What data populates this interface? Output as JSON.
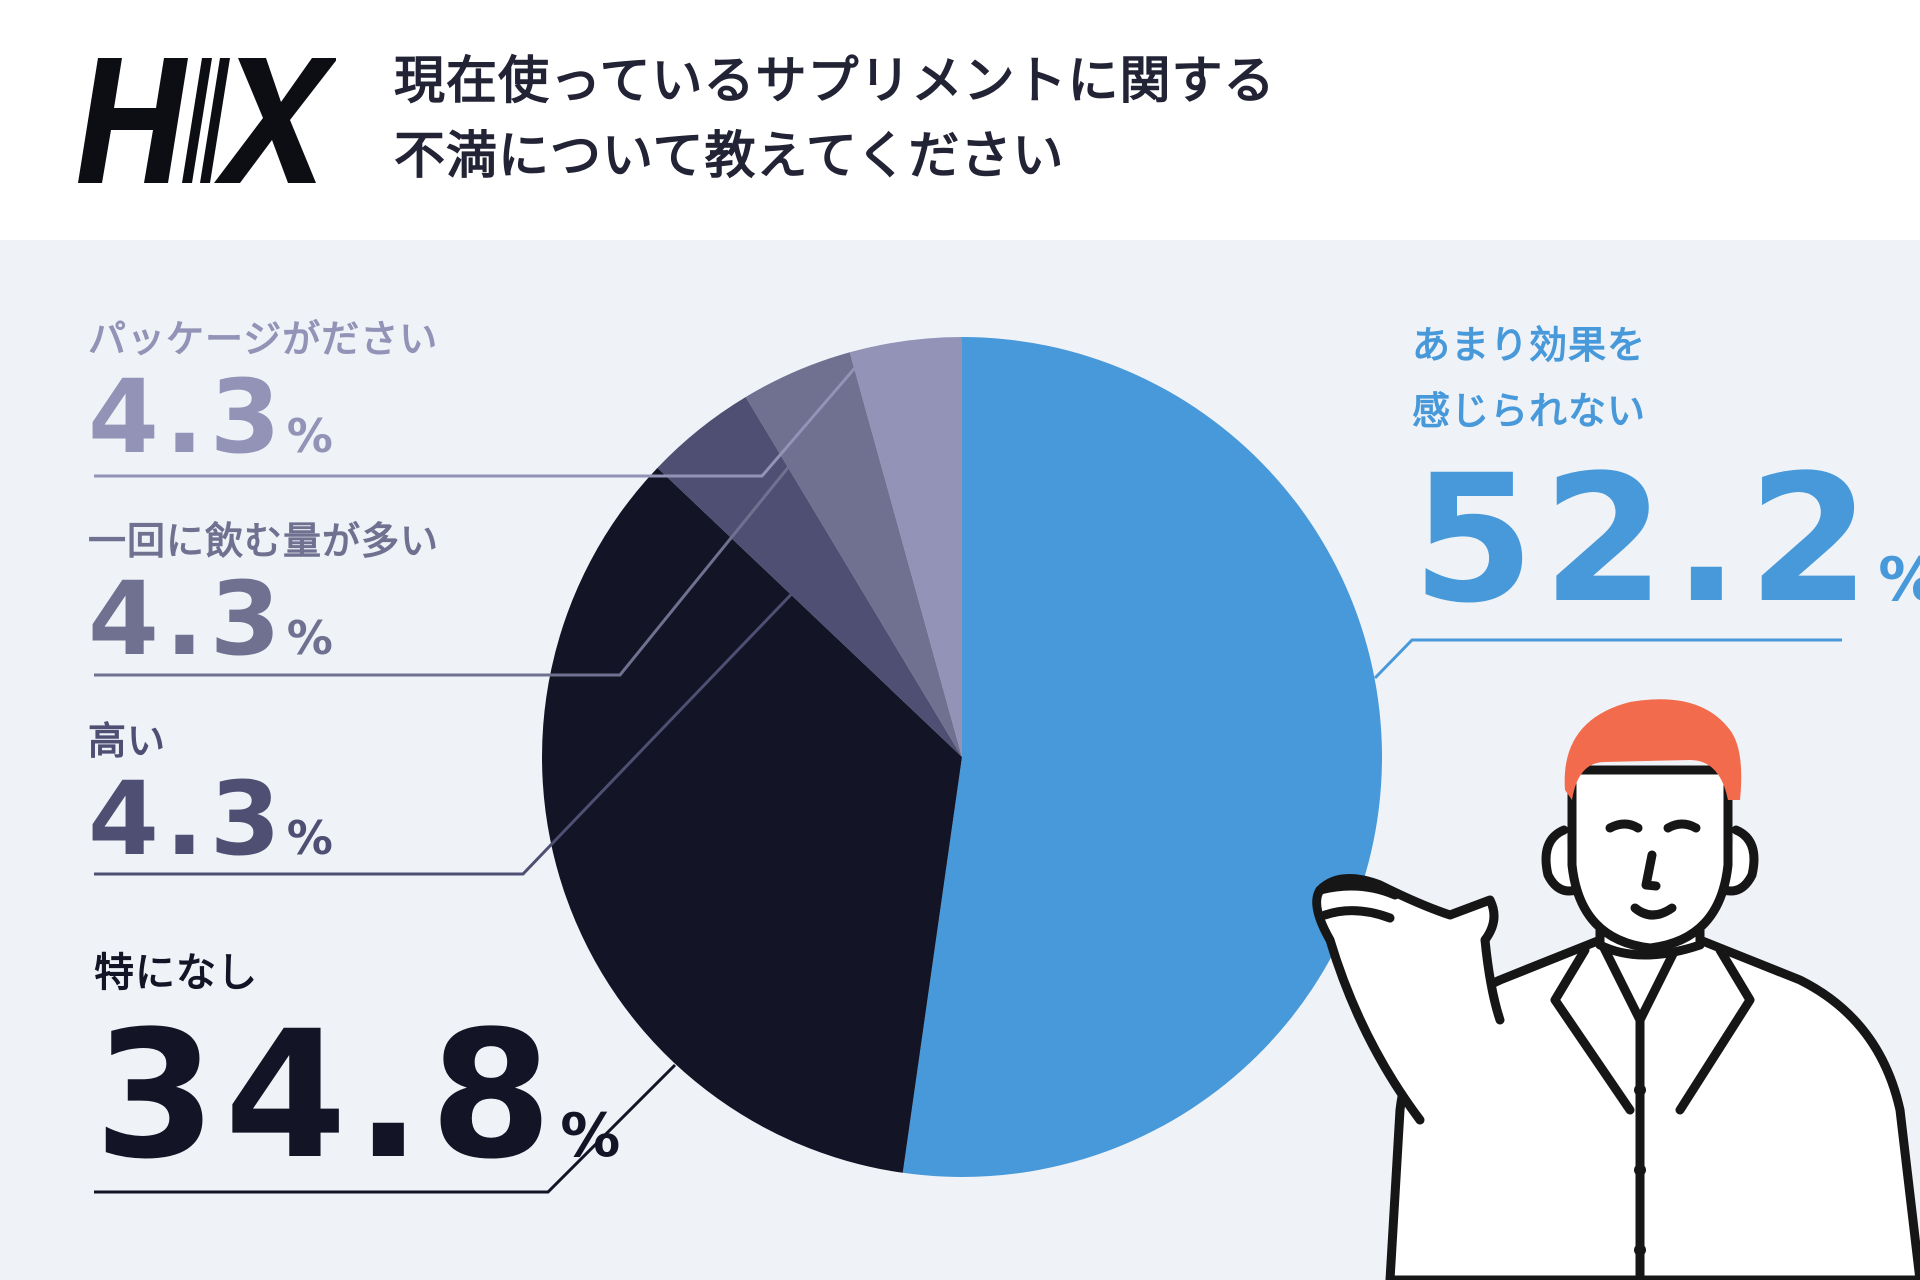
{
  "header": {
    "logo_text": "H/X",
    "title_line1": "現在使っているサプリメントに関する",
    "title_line2": "不満について教えてください"
  },
  "chart_data": {
    "type": "pie",
    "title": "現在使っているサプリメントに関する不満について教えてください",
    "unit": "%",
    "slices": [
      {
        "label_lines": [
          "あまり効果を",
          "感じられない"
        ],
        "value": 52.2,
        "value_text": "52.2",
        "color": "#4799da"
      },
      {
        "label_lines": [
          "特になし"
        ],
        "value": 34.8,
        "value_text": "34.8",
        "color": "#131425"
      },
      {
        "label_lines": [
          "高い"
        ],
        "value": 4.3,
        "value_text": "4.3",
        "color": "#4f4f73"
      },
      {
        "label_lines": [
          "一回に飲む量が多い"
        ],
        "value": 4.3,
        "value_text": "4.3",
        "color": "#707090"
      },
      {
        "label_lines": [
          "パッケージがださい"
        ],
        "value": 4.3,
        "value_text": "4.3",
        "color": "#9392b7"
      }
    ]
  },
  "colors": {
    "background": "#eff3f8",
    "header_bg": "#ffffff",
    "title_text": "#232336",
    "accent_blue": "#4799da",
    "hair": "#f26b4c"
  },
  "illustration": {
    "name": "pointing-man-in-white-coat"
  }
}
